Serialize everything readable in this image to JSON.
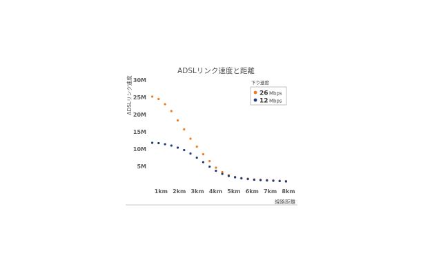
{
  "chart_data": {
    "type": "scatter",
    "title": "ADSLリンク速度と距離",
    "xlabel": "線路距離",
    "ylabel": "ADSLリンク速度",
    "x_tick_labels": [
      "1km",
      "2km",
      "3km",
      "4km",
      "5km",
      "6km",
      "7km",
      "8km"
    ],
    "y_tick_labels": [
      "5M",
      "10M",
      "15M",
      "20M",
      "25M",
      "30M"
    ],
    "xlim": [
      0,
      8
    ],
    "ylim": [
      0,
      30
    ],
    "grid": false,
    "legend": {
      "title": "下り速度",
      "placement": "top-right"
    },
    "series": [
      {
        "name_value": "26",
        "name_unit": "Mbps",
        "color": "#f07c1e",
        "x": [
          0.25,
          0.6,
          0.95,
          1.3,
          1.65,
          2.0,
          2.35,
          2.7,
          3.05,
          3.4,
          3.75,
          4.1,
          4.45,
          4.8,
          5.15,
          5.5,
          5.85,
          6.2,
          6.55,
          6.9,
          7.25,
          7.6
        ],
        "y": [
          25.2,
          24.5,
          23.0,
          21.0,
          18.3,
          15.7,
          13.0,
          10.7,
          8.5,
          6.5,
          4.6,
          3.3,
          2.4,
          1.9,
          1.6,
          1.4,
          1.2,
          1.1,
          1.0,
          0.9,
          0.8,
          0.7
        ]
      },
      {
        "name_value": "12",
        "name_unit": "Mbps",
        "color": "#233a7a",
        "x": [
          0.25,
          0.6,
          0.95,
          1.3,
          1.65,
          2.0,
          2.35,
          2.7,
          3.05,
          3.4,
          3.75,
          4.1,
          4.45,
          4.8,
          5.15,
          5.5,
          5.85,
          6.2,
          6.55,
          6.9,
          7.25,
          7.6
        ],
        "y": [
          11.8,
          11.7,
          11.4,
          11.0,
          10.4,
          9.7,
          8.7,
          7.5,
          6.2,
          4.9,
          3.7,
          2.8,
          2.2,
          1.8,
          1.5,
          1.3,
          1.1,
          1.0,
          0.9,
          0.8,
          0.7,
          0.6
        ]
      }
    ]
  }
}
